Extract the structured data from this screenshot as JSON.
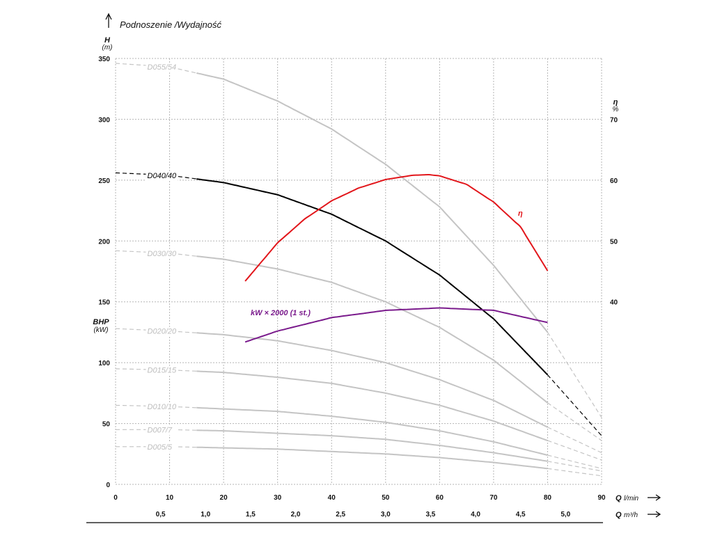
{
  "chart_data": {
    "type": "line",
    "title": "Podnoszenie /Wydajność",
    "y_left": {
      "label": "H",
      "unit": "(m)",
      "ticks": [
        0,
        50,
        100,
        150,
        200,
        250,
        300,
        350
      ],
      "range": [
        0,
        350
      ]
    },
    "y_bhp": {
      "label": "BHP",
      "unit": "(kW)"
    },
    "y_right": {
      "label": "η",
      "unit": "%",
      "ticks": [
        40,
        50,
        60,
        70
      ]
    },
    "x_bottom": {
      "label": "Q",
      "unit": "l/min",
      "ticks": [
        0,
        10,
        20,
        30,
        40,
        50,
        60,
        70,
        80,
        90
      ],
      "range": [
        0,
        90
      ]
    },
    "x_secondary": {
      "label": "Q",
      "unit": "m³/h",
      "ticks": [
        "0,5",
        "1,0",
        "1,5",
        "2,0",
        "2,5",
        "3,0",
        "3,5",
        "4,0",
        "4,5",
        "5,0"
      ]
    },
    "colors": {
      "grey": "#c4c4c4",
      "black": "#000000",
      "red": "#e2161b",
      "purple": "#7a1a8c"
    },
    "series": [
      {
        "name": "D055/54",
        "color": "#c4c4c4",
        "solid_from": 15,
        "solid_to": 80,
        "x": [
          0,
          10,
          20,
          30,
          40,
          50,
          60,
          70,
          80,
          90
        ],
        "y": [
          346,
          343,
          333,
          315,
          292,
          263,
          228,
          180,
          125,
          55
        ]
      },
      {
        "name": "D040/40",
        "color": "#000000",
        "solid_from": 15,
        "solid_to": 80,
        "labeled_curve": true,
        "x": [
          0,
          10,
          20,
          30,
          40,
          50,
          60,
          70,
          80,
          90
        ],
        "y": [
          256,
          254,
          248,
          238,
          222,
          200,
          172,
          136,
          90,
          40
        ]
      },
      {
        "name": "D030/30",
        "color": "#c4c4c4",
        "solid_from": 15,
        "solid_to": 80,
        "x": [
          0,
          10,
          20,
          30,
          40,
          50,
          60,
          70,
          80,
          90
        ],
        "y": [
          192,
          190,
          185,
          177,
          166,
          150,
          129,
          102,
          67,
          36
        ]
      },
      {
        "name": "D020/20",
        "color": "#c4c4c4",
        "solid_from": 15,
        "solid_to": 80,
        "x": [
          0,
          10,
          20,
          30,
          40,
          50,
          60,
          70,
          80,
          90
        ],
        "y": [
          128,
          126,
          123,
          118,
          110,
          100,
          86,
          69,
          47,
          26
        ]
      },
      {
        "name": "D015/15",
        "color": "#c4c4c4",
        "solid_from": 15,
        "solid_to": 80,
        "x": [
          0,
          10,
          20,
          30,
          40,
          50,
          60,
          70,
          80,
          90
        ],
        "y": [
          95,
          94,
          92,
          88,
          83,
          75,
          65,
          52,
          36,
          20
        ]
      },
      {
        "name": "D010/10",
        "color": "#c4c4c4",
        "solid_from": 15,
        "solid_to": 80,
        "x": [
          0,
          10,
          20,
          30,
          40,
          50,
          60,
          70,
          80,
          90
        ],
        "y": [
          65,
          64,
          62,
          60,
          56,
          51,
          44,
          35,
          24,
          13
        ]
      },
      {
        "name": "D007/7",
        "color": "#c4c4c4",
        "solid_from": 15,
        "solid_to": 80,
        "x": [
          0,
          10,
          20,
          30,
          40,
          50,
          60,
          70,
          80,
          90
        ],
        "y": [
          45,
          45,
          44,
          42,
          40,
          37,
          32,
          26,
          19,
          11
        ]
      },
      {
        "name": "D005/5",
        "color": "#c4c4c4",
        "solid_from": 15,
        "solid_to": 80,
        "x": [
          0,
          10,
          20,
          30,
          40,
          50,
          60,
          70,
          80,
          90
        ],
        "y": [
          31,
          31,
          30,
          29,
          27,
          25,
          22,
          18,
          13,
          7
        ]
      },
      {
        "name": "η",
        "color": "#e2161b",
        "axis": "right",
        "x": [
          24,
          30,
          35,
          40,
          45,
          50,
          55,
          58,
          60,
          65,
          70,
          75,
          80
        ],
        "y": [
          43.4,
          49.7,
          53.6,
          56.6,
          58.7,
          60.1,
          60.8,
          60.9,
          60.7,
          59.3,
          56.4,
          52.3,
          45.1
        ]
      },
      {
        "name": "kW × 2000 (1 st.)",
        "color": "#7a1a8c",
        "x": [
          24,
          30,
          40,
          50,
          60,
          70,
          80
        ],
        "y": [
          117,
          126,
          137,
          143,
          145,
          143,
          133
        ]
      }
    ]
  }
}
